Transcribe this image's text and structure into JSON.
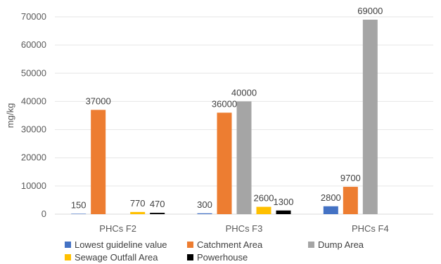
{
  "chart_data": {
    "type": "bar",
    "title": "",
    "xlabel": "",
    "ylabel": "mg/kg",
    "ylim": [
      0,
      70000
    ],
    "yticks": [
      0,
      10000,
      20000,
      30000,
      40000,
      50000,
      60000,
      70000
    ],
    "grid": true,
    "legend_position": "bottom",
    "categories": [
      "PHCs F2",
      "PHCs F3",
      "PHCs F4"
    ],
    "series": [
      {
        "name": "Lowest guideline value",
        "color": "#4472C4",
        "values": [
          150,
          300,
          2800
        ],
        "labels": [
          "150",
          "300",
          "2800"
        ]
      },
      {
        "name": "Catchment Area",
        "color": "#ED7D31",
        "values": [
          37000,
          36000,
          9700
        ],
        "labels": [
          "37000",
          "36000",
          "9700"
        ]
      },
      {
        "name": "Dump Area",
        "color": "#A5A5A5",
        "values": [
          null,
          40000,
          69000
        ],
        "labels": [
          "",
          "40000",
          "69000"
        ]
      },
      {
        "name": "Sewage Outfall Area",
        "color": "#FFC000",
        "values": [
          770,
          2600,
          null
        ],
        "labels": [
          "770",
          "2600",
          ""
        ]
      },
      {
        "name": "Powerhouse",
        "color": "#000000",
        "values": [
          470,
          1300,
          null
        ],
        "labels": [
          "470",
          "1300",
          ""
        ]
      }
    ]
  }
}
